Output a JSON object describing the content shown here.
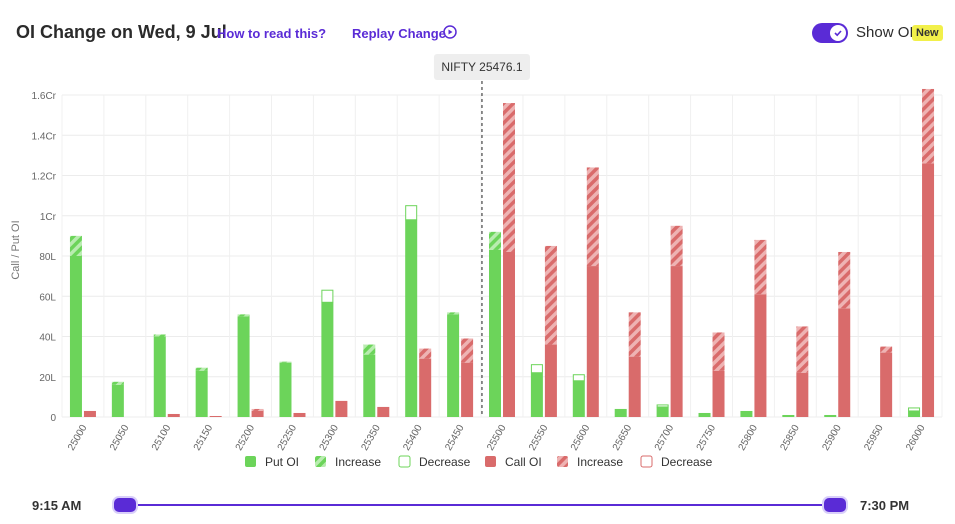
{
  "header": {
    "title": "OI Change on Wed, 9 Jul",
    "how_to_read": "How to read this?",
    "replay": "Replay Change",
    "toggle_label": "Show OI",
    "badge": "New"
  },
  "colors": {
    "put": "#6cd45a",
    "call": "#d96b6b",
    "accent": "#5a2bd6"
  },
  "slider": {
    "start": "9:15 AM",
    "end": "7:30 PM",
    "range": [
      0,
      1
    ]
  },
  "chart_data": {
    "type": "bar",
    "ylabel": "Call / Put OI",
    "spot_label": "NIFTY 25476.1",
    "spot_value": 25476.1,
    "y_ticks": [
      "0",
      "20L",
      "40L",
      "60L",
      "80L",
      "1Cr",
      "1.2Cr",
      "1.4Cr",
      "1.6Cr"
    ],
    "ylim": [
      0,
      160
    ],
    "y_unit": "Lakh",
    "categories": [
      "25000",
      "25050",
      "25100",
      "25150",
      "25200",
      "25250",
      "25300",
      "25350",
      "25400",
      "25450",
      "25500",
      "25550",
      "25600",
      "25650",
      "25700",
      "25750",
      "25800",
      "25850",
      "25900",
      "25950",
      "26000"
    ],
    "series": [
      {
        "name": "Put OI",
        "values": [
          80,
          16,
          40,
          23,
          50,
          27,
          57,
          31,
          98,
          51,
          83,
          22,
          18,
          4,
          5,
          2,
          3,
          1,
          1,
          0,
          3
        ]
      },
      {
        "name": "Increase",
        "group": "put",
        "values": [
          10,
          1.5,
          1,
          1.5,
          1,
          0.5,
          0,
          5,
          0,
          1,
          9,
          0,
          0,
          0,
          0,
          0,
          0,
          0,
          0,
          0,
          0
        ]
      },
      {
        "name": "Decrease",
        "group": "put",
        "values": [
          0,
          0,
          0,
          0,
          0,
          0,
          6,
          0,
          7,
          0,
          0,
          4,
          3,
          0,
          1,
          0,
          0,
          0,
          0,
          0,
          1.5
        ]
      },
      {
        "name": "Call OI",
        "values": [
          3,
          0,
          1.5,
          0.5,
          3,
          2,
          8,
          5,
          29,
          27,
          82,
          36,
          75,
          30,
          75,
          23,
          61,
          22,
          54,
          32,
          126
        ]
      },
      {
        "name": "Increase",
        "group": "call",
        "values": [
          0,
          0,
          0,
          0,
          1,
          0,
          0,
          0,
          5,
          12,
          74,
          49,
          49,
          22,
          20,
          19,
          27,
          23,
          28,
          3,
          37
        ]
      },
      {
        "name": "Decrease",
        "group": "call",
        "values": [
          0,
          0,
          0,
          0,
          0,
          0,
          0,
          0,
          0,
          0,
          0,
          0,
          0,
          0,
          0,
          0,
          0,
          0,
          0,
          0,
          0
        ]
      }
    ],
    "legend": [
      "Put OI",
      "Increase",
      "Decrease",
      "Call OI",
      "Increase",
      "Decrease"
    ],
    "legend_position": "bottom-center",
    "grid": true
  }
}
